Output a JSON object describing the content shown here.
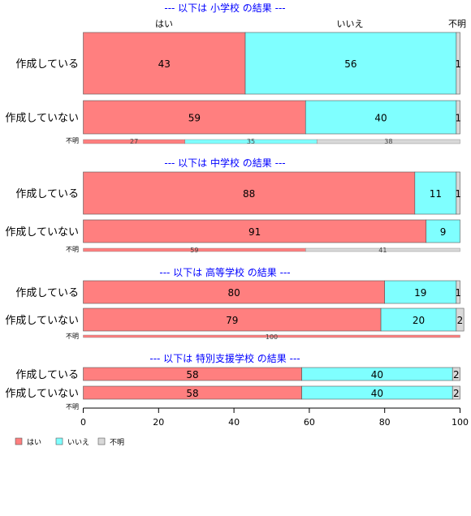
{
  "chart_data": {
    "type": "bar",
    "orientation": "horizontal",
    "stacked": true,
    "percent": true,
    "categories": [
      "はい",
      "いいえ",
      "不明"
    ],
    "colors": {
      "はい": "#ff7f7f",
      "いいえ": "#7fffff",
      "不明": "#d9d9d9"
    },
    "xlim": [
      0,
      100
    ],
    "xticks": [
      0,
      20,
      40,
      60,
      80,
      100
    ],
    "top_labels": [
      "はい",
      "いいえ",
      "不明"
    ],
    "legend": {
      "position": "bottom-left",
      "items": [
        "はい",
        "いいえ",
        "不明"
      ]
    },
    "panels": [
      {
        "title": "--- 以下は 小学校 の結果 ---",
        "rows": [
          {
            "label": "作成している",
            "values": [
              43,
              56,
              1
            ]
          },
          {
            "label": "作成していない",
            "values": [
              59,
              40,
              1
            ]
          }
        ],
        "unknown_row": {
          "label": "不明",
          "values": [
            27,
            35,
            38
          ]
        }
      },
      {
        "title": "--- 以下は 中学校 の結果 ---",
        "rows": [
          {
            "label": "作成している",
            "values": [
              88,
              11,
              1
            ]
          },
          {
            "label": "作成していない",
            "values": [
              91,
              9,
              0
            ]
          }
        ],
        "unknown_row": {
          "label": "不明",
          "values": [
            59,
            0,
            41
          ]
        }
      },
      {
        "title": "--- 以下は 高等学校 の結果 ---",
        "rows": [
          {
            "label": "作成している",
            "values": [
              80,
              19,
              1
            ]
          },
          {
            "label": "作成していない",
            "values": [
              79,
              20,
              2
            ]
          }
        ],
        "unknown_row": {
          "label": "不明",
          "values": [
            100,
            0,
            0
          ]
        }
      },
      {
        "title": "--- 以下は 特別支援学校 の結果 ---",
        "rows": [
          {
            "label": "作成している",
            "values": [
              58,
              40,
              2
            ]
          },
          {
            "label": "作成していない",
            "values": [
              58,
              40,
              2
            ]
          }
        ],
        "unknown_row": {
          "label": "不明",
          "values": [
            0,
            0,
            0
          ]
        }
      }
    ]
  }
}
